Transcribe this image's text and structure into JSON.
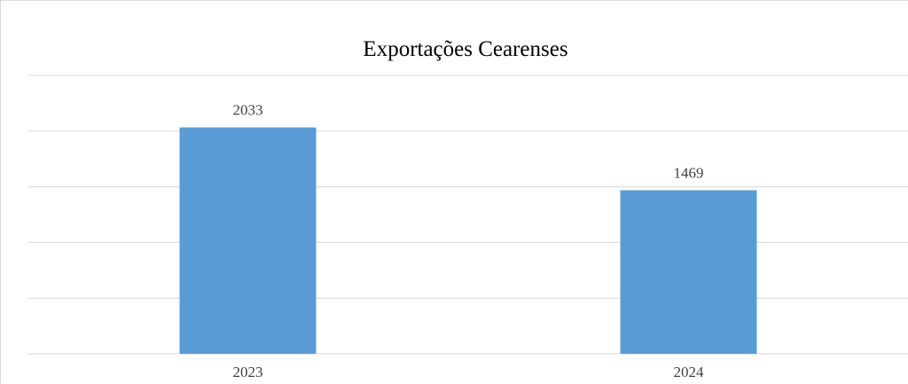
{
  "chart_data": {
    "type": "bar",
    "title": "Exportações Cearenses",
    "categories": [
      "2023",
      "2024"
    ],
    "values": [
      2033,
      1469
    ],
    "ylim": [
      0,
      2500
    ],
    "grid": true,
    "legend": "none",
    "colors": {
      "bar": "#5b9bd5",
      "grid": "#d9d9d9"
    }
  }
}
